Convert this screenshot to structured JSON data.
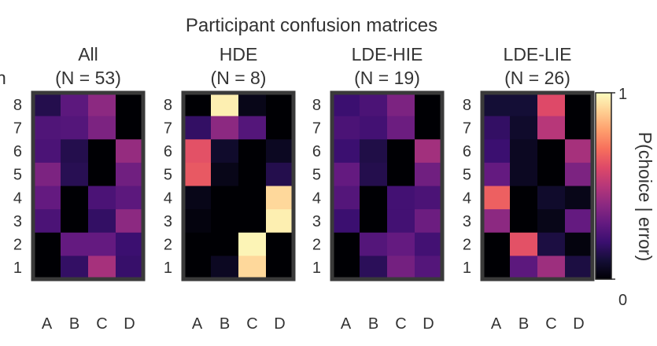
{
  "figure": {
    "title": "Participant confusion matrices",
    "left_edge_fragment": "n"
  },
  "chart_data": {
    "type": "heatmap",
    "x_categories": [
      "A",
      "B",
      "C",
      "D"
    ],
    "y_categories": [
      "1",
      "2",
      "3",
      "4",
      "5",
      "6",
      "7",
      "8"
    ],
    "colormap": "magma",
    "colorbar": {
      "label": "P(choice | error)",
      "min": 0,
      "max": 1,
      "min_label": "0",
      "max_label": "1"
    },
    "panels": [
      {
        "name": "All",
        "subtitle": "(N = 53)",
        "values": {
          "8": [
            0.14,
            0.28,
            0.4,
            0.0
          ],
          "7": [
            0.25,
            0.26,
            0.36,
            0.0
          ],
          "6": [
            0.24,
            0.14,
            0.0,
            0.42
          ],
          "5": [
            0.36,
            0.15,
            0.0,
            0.33
          ],
          "4": [
            0.3,
            0.0,
            0.24,
            0.28
          ],
          "3": [
            0.24,
            0.0,
            0.18,
            0.4
          ],
          "2": [
            0.0,
            0.3,
            0.3,
            0.2
          ],
          "1": [
            0.0,
            0.18,
            0.46,
            0.19
          ]
        }
      },
      {
        "name": "HDE",
        "subtitle": "(N = 8)",
        "values": {
          "8": [
            0.0,
            0.97,
            0.04,
            0.0
          ],
          "7": [
            0.18,
            0.4,
            0.26,
            0.0
          ],
          "6": [
            0.62,
            0.08,
            0.0,
            0.06
          ],
          "5": [
            0.64,
            0.04,
            0.0,
            0.14
          ],
          "4": [
            0.04,
            0.0,
            0.0,
            0.92
          ],
          "3": [
            0.02,
            0.0,
            0.0,
            0.97
          ],
          "2": [
            0.0,
            0.0,
            0.98,
            0.0
          ],
          "1": [
            0.0,
            0.06,
            0.92,
            0.0
          ]
        }
      },
      {
        "name": "LDE-HIE",
        "subtitle": "(N = 19)",
        "values": {
          "8": [
            0.2,
            0.24,
            0.36,
            0.0
          ],
          "7": [
            0.24,
            0.22,
            0.32,
            0.0
          ],
          "6": [
            0.2,
            0.13,
            0.0,
            0.45
          ],
          "5": [
            0.3,
            0.14,
            0.0,
            0.33
          ],
          "4": [
            0.26,
            0.0,
            0.22,
            0.24
          ],
          "3": [
            0.2,
            0.0,
            0.22,
            0.32
          ],
          "2": [
            0.0,
            0.26,
            0.3,
            0.22
          ],
          "1": [
            0.0,
            0.16,
            0.34,
            0.26
          ]
        }
      },
      {
        "name": "LDE-LIE",
        "subtitle": "(N = 26)",
        "values": {
          "8": [
            0.1,
            0.1,
            0.6,
            0.0
          ],
          "7": [
            0.18,
            0.08,
            0.5,
            0.0
          ],
          "6": [
            0.2,
            0.06,
            0.0,
            0.46
          ],
          "5": [
            0.3,
            0.06,
            0.0,
            0.36
          ],
          "4": [
            0.66,
            0.0,
            0.08,
            0.04
          ],
          "3": [
            0.4,
            0.0,
            0.04,
            0.3
          ],
          "2": [
            0.0,
            0.62,
            0.12,
            0.02
          ],
          "1": [
            0.0,
            0.28,
            0.44,
            0.12
          ]
        }
      }
    ]
  }
}
